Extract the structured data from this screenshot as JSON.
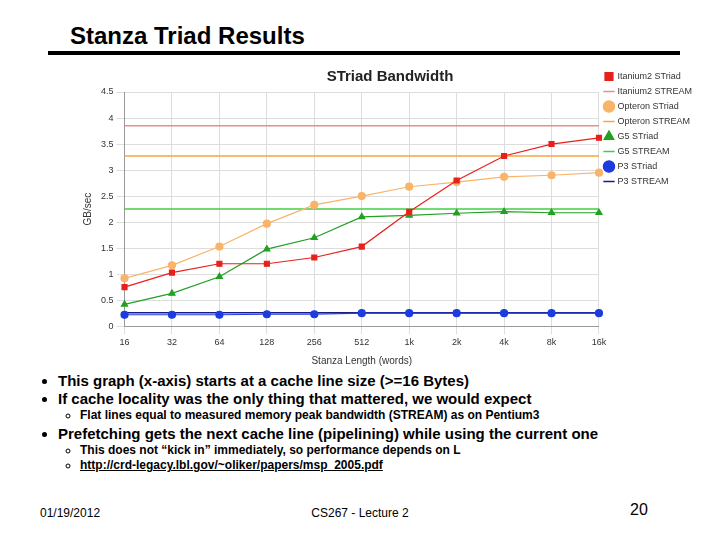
{
  "title": "Stanza Triad Results",
  "chart_data": {
    "type": "line",
    "title": "STriad Bandwidth",
    "x_label": "Stanza Length (words)",
    "y_label": "GB/sec",
    "categories": [
      "16",
      "32",
      "64",
      "128",
      "256",
      "512",
      "1k",
      "2k",
      "4k",
      "8k",
      "16k"
    ],
    "ylim": [
      0,
      4.5
    ],
    "yticks": [
      0,
      0.5,
      1,
      1.5,
      2,
      2.5,
      3,
      3.5,
      4,
      4.5
    ],
    "grid": true,
    "legend": "right",
    "series": [
      {
        "name": "Itanium2 STriad",
        "color": "#e8201c",
        "marker": "square",
        "line_style": "solid",
        "values": [
          0.75,
          1.03,
          1.2,
          1.2,
          1.32,
          1.53,
          2.2,
          2.8,
          3.27,
          3.5,
          3.62
        ]
      },
      {
        "name": "Itanium2 STREAM",
        "color": "#f08a8a",
        "marker": "none",
        "line_style": "solid",
        "values": [
          3.85,
          3.85,
          3.85,
          3.85,
          3.85,
          3.85,
          3.85,
          3.85,
          3.85,
          3.85,
          3.85
        ]
      },
      {
        "name": "Opteron STriad",
        "color": "#f9b46a",
        "marker": "circle",
        "line_style": "solid",
        "values": [
          0.92,
          1.17,
          1.53,
          1.97,
          2.33,
          2.5,
          2.68,
          2.77,
          2.87,
          2.9,
          2.95
        ]
      },
      {
        "name": "Opteron STREAM",
        "color": "#f4a640",
        "marker": "none",
        "line_style": "solid",
        "values": [
          3.27,
          3.27,
          3.27,
          3.27,
          3.27,
          3.27,
          3.27,
          3.27,
          3.27,
          3.27,
          3.27
        ]
      },
      {
        "name": "G5 STriad",
        "color": "#22a022",
        "marker": "triangle",
        "line_style": "solid",
        "values": [
          0.42,
          0.63,
          0.95,
          1.48,
          1.7,
          2.1,
          2.13,
          2.17,
          2.2,
          2.18,
          2.18
        ]
      },
      {
        "name": "G5 STREAM",
        "color": "#44cc44",
        "marker": "none",
        "line_style": "solid",
        "values": [
          2.25,
          2.25,
          2.25,
          2.25,
          2.25,
          2.25,
          2.25,
          2.25,
          2.25,
          2.25,
          2.25
        ]
      },
      {
        "name": "P3 STriad",
        "color": "#1c3ce0",
        "marker": "circle",
        "line_style": "solid",
        "values": [
          0.22,
          0.22,
          0.22,
          0.23,
          0.23,
          0.25,
          0.25,
          0.25,
          0.25,
          0.25,
          0.25
        ]
      },
      {
        "name": "P3 STREAM",
        "color": "#1a1a80",
        "marker": "none",
        "line_style": "solid",
        "values": [
          0.26,
          0.26,
          0.26,
          0.26,
          0.26,
          0.26,
          0.26,
          0.26,
          0.26,
          0.26,
          0.26
        ]
      }
    ]
  },
  "bullets": [
    {
      "text": "This graph (x-axis) starts at a cache line size (>=16 Bytes)",
      "sub": []
    },
    {
      "text": "If cache locality was the only thing that mattered, we would expect",
      "sub": [
        "Flat lines equal to measured memory peak bandwidth (STREAM) as on Pentium3"
      ]
    },
    {
      "text": "Prefetching gets the next cache line (pipelining) while using the current one",
      "sub": [
        "This does not “kick in” immediately, so performance depends on L",
        "http://crd-legacy.lbl.gov/~oliker/papers/msp_2005.pdf"
      ]
    }
  ],
  "footer": {
    "date": "01/19/2012",
    "course": "CS267 - Lecture 2",
    "page": 20
  }
}
